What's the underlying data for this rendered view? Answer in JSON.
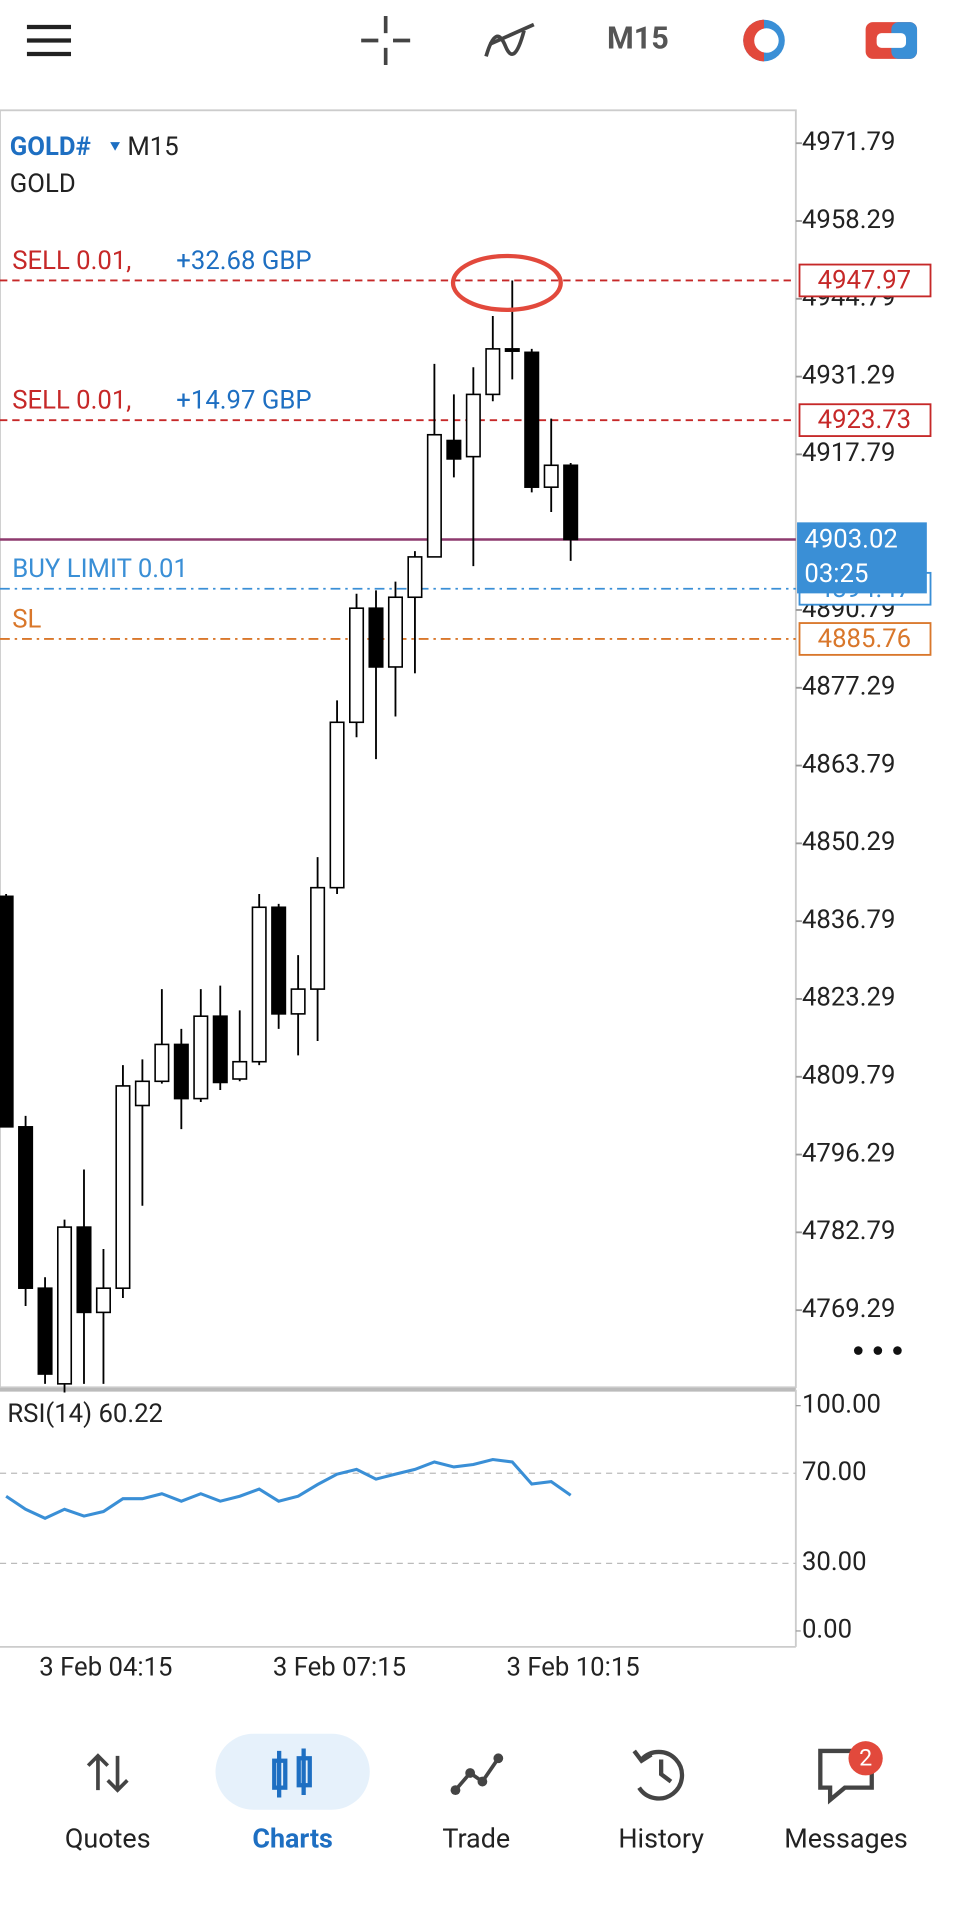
{
  "top_bar": {
    "timeframe": "M15"
  },
  "chart_data": [
    {
      "type": "candlestick",
      "symbol": "GOLD#",
      "timeframe": "M15",
      "description": "GOLD",
      "categories": [
        null,
        null,
        null,
        null,
        null,
        "3 Feb 04:15",
        null,
        null,
        null,
        null,
        null,
        null,
        null,
        null,
        null,
        null,
        null,
        "3 Feb 07:15",
        null,
        null,
        null,
        null,
        null,
        null,
        null,
        null,
        null,
        null,
        null,
        "3 Feb 10:15"
      ],
      "open": [
        4841.1,
        4801.1,
        4773.1,
        4756.5,
        4783.7,
        4768.9,
        4773.1,
        4804.8,
        4809.0,
        4815.4,
        4806.0,
        4820.3,
        4809.4,
        4812.4,
        4839.2,
        4820.7,
        4825.0,
        4842.6,
        4871.3,
        4891.1,
        4880.9,
        4893.0,
        4900.0,
        4920.2,
        4917.4,
        4928.2,
        4936.1,
        4935.5,
        4912.1,
        4915.9
      ],
      "high": [
        4841.5,
        4803.0,
        4775.0,
        4785.0,
        4793.7,
        4779.9,
        4811.8,
        4812.8,
        4825.0,
        4818.1,
        4825.0,
        4825.6,
        4821.3,
        4841.5,
        4839.8,
        4830.9,
        4847.9,
        4875.1,
        4893.6,
        4894.2,
        4895.7,
        4901.0,
        4933.5,
        4928.2,
        4932.9,
        4941.8,
        4947.97,
        4936.1,
        4924.0,
        4916.3
      ],
      "low": [
        4801.1,
        4770.0,
        4756.5,
        4755.0,
        4756.5,
        4756.5,
        4771.4,
        4787.4,
        4808.6,
        4800.7,
        4805.4,
        4807.5,
        4809.0,
        4811.8,
        4818.1,
        4813.5,
        4816.0,
        4841.5,
        4868.7,
        4864.9,
        4872.3,
        4879.8,
        4900.0,
        4913.8,
        4898.4,
        4927.0,
        4930.8,
        4911.2,
        4907.8,
        4899.3
      ],
      "close": [
        4801.1,
        4773.1,
        4758.2,
        4783.7,
        4768.9,
        4773.1,
        4808.2,
        4809.0,
        4815.4,
        4806.0,
        4820.3,
        4808.8,
        4812.4,
        4839.2,
        4820.7,
        4825.0,
        4842.6,
        4871.3,
        4891.1,
        4880.9,
        4893.0,
        4900.0,
        4921.2,
        4917.0,
        4928.2,
        4936.1,
        4935.7,
        4912.1,
        4915.9,
        4903.02
      ],
      "up_color": "#ffffff",
      "down_color": "#000000",
      "ylim": [
        4755.9,
        4977.5
      ],
      "yticks": [
        4971.79,
        4958.29,
        4944.79,
        4931.29,
        4917.79,
        4890.79,
        4877.29,
        4863.79,
        4850.29,
        4836.79,
        4823.29,
        4809.79,
        4796.29,
        4782.79,
        4769.29
      ],
      "price_lines": [
        {
          "label": "SELL 0.01,",
          "profit": "+32.68 GBP",
          "price": 4947.97,
          "color": "#c62828",
          "style": "dashed"
        },
        {
          "label": "SELL 0.01,",
          "profit": "+14.97 GBP",
          "price": 4923.73,
          "color": "#c62828",
          "style": "dashed"
        },
        {
          "label": "BUY LIMIT 0.01",
          "price": 4894.47,
          "color": "#3a8fd6",
          "style": "dashdot"
        },
        {
          "label": "SL",
          "price": 4885.76,
          "color": "#d9772b",
          "style": "dashdot"
        }
      ],
      "current_price": {
        "price": 4903.02,
        "countdown": "03:25",
        "color": "#3a8fd6",
        "line_color": "#8e3a6e"
      }
    },
    {
      "type": "line",
      "title": "RSI(14) 60.22",
      "color": "#3a8fd6",
      "values": [
        59.8,
        54,
        50,
        54,
        51,
        53,
        58.7,
        58.7,
        60.9,
        57.6,
        60.9,
        57.6,
        59.8,
        63,
        57.6,
        59.8,
        65,
        69.6,
        71.7,
        67.4,
        69.6,
        71.7,
        75,
        72.8,
        73.9,
        76.1,
        75,
        65.2,
        66.3,
        60.22
      ],
      "ylim": [
        0,
        100
      ],
      "yticks": [
        {
          "value": 100,
          "label": "100.00"
        },
        {
          "value": 70,
          "label": "70.00"
        },
        {
          "value": 30,
          "label": "30.00"
        },
        {
          "value": 0,
          "label": "0.00"
        }
      ]
    }
  ],
  "nav": {
    "items": [
      "Quotes",
      "Charts",
      "Trade",
      "History",
      "Messages"
    ],
    "active": 1,
    "badge": "2"
  }
}
